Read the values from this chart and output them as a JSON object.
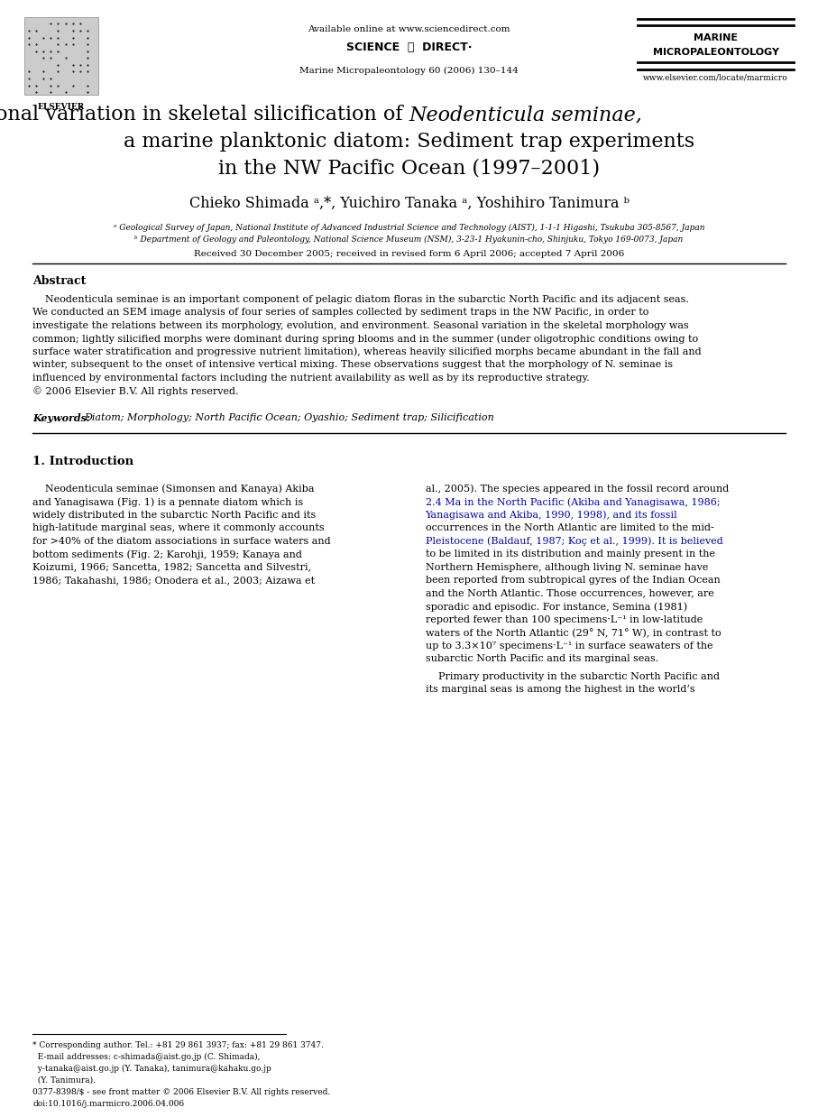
{
  "bg_color": "#ffffff",
  "page_width": 9.07,
  "page_height": 12.38,
  "header": {
    "elsevier_text": "ELSEVIER",
    "available_online": "Available online at www.sciencedirect.com",
    "journal_name_line1": "MARINE",
    "journal_name_line2": "MICROPALEONTOLOGY",
    "journal_ref": "Marine Micropaleontology 60 (2006) 130–144",
    "website": "www.elsevier.com/locate/marmicro"
  },
  "title_line1_normal": "Seasonal variation in skeletal silicification of ",
  "title_line1_italic": "Neodenticula seminae,",
  "title_line2": "a marine planktonic diatom: Sediment trap experiments",
  "title_line3": "in the NW Pacific Ocean (1997–2001)",
  "authors": "Chieko Shimada ᵃ,*, Yuichiro Tanaka ᵃ, Yoshihiro Tanimura ᵇ",
  "affil_a": "ᵃ Geological Survey of Japan, National Institute of Advanced Industrial Science and Technology (AIST), 1-1-1 Higashi, Tsukuba 305-8567, Japan",
  "affil_b": "ᵇ Department of Geology and Paleontology, National Science Museum (NSM), 3-23-1 Hyakunin-cho, Shinjuku, Tokyo 169-0073, Japan",
  "received": "Received 30 December 2005; received in revised form 6 April 2006; accepted 7 April 2006",
  "abstract_header": "Abstract",
  "abstract_lines": [
    "    Neodenticula seminae is an important component of pelagic diatom floras in the subarctic North Pacific and its adjacent seas.",
    "We conducted an SEM image analysis of four series of samples collected by sediment traps in the NW Pacific, in order to",
    "investigate the relations between its morphology, evolution, and environment. Seasonal variation in the skeletal morphology was",
    "common; lightly silicified morphs were dominant during spring blooms and in the summer (under oligotrophic conditions owing to",
    "surface water stratification and progressive nutrient limitation), whereas heavily silicified morphs became abundant in the fall and",
    "winter, subsequent to the onset of intensive vertical mixing. These observations suggest that the morphology of N. seminae is",
    "influenced by environmental factors including the nutrient availability as well as by its reproductive strategy.",
    "© 2006 Elsevier B.V. All rights reserved."
  ],
  "keywords_label": "Keywords: ",
  "keywords_text": "Diatom; Morphology; North Pacific Ocean; Oyashio; Sediment trap; Silicification",
  "section1_header": "1. Introduction",
  "left_col_lines": [
    "    Neodenticula seminae (Simonsen and Kanaya) Akiba",
    "and Yanagisawa (Fig. 1) is a pennate diatom which is",
    "widely distributed in the subarctic North Pacific and its",
    "high-latitude marginal seas, where it commonly accounts",
    "for >40% of the diatom associations in surface waters and",
    "bottom sediments (Fig. 2; Karohji, 1959; Kanaya and",
    "Koizumi, 1966; Sancetta, 1982; Sancetta and Silvestri,",
    "1986; Takahashi, 1986; Onodera et al., 2003; Aizawa et"
  ],
  "right_col_lines": [
    "al., 2005). The species appeared in the fossil record around",
    "2.4 Ma in the North Pacific (Akiba and Yanagisawa, 1986;",
    "Yanagisawa and Akiba, 1990, 1998), and its fossil",
    "occurrences in the North Atlantic are limited to the mid-",
    "Pleistocene (Baldauf, 1987; Koç et al., 1999). It is believed",
    "to be limited in its distribution and mainly present in the",
    "Northern Hemisphere, although living N. seminae have",
    "been reported from subtropical gyres of the Indian Ocean",
    "and the North Atlantic. Those occurrences, however, are",
    "sporadic and episodic. For instance, Semina (1981)",
    "reported fewer than 100 specimens·L⁻¹ in low-latitude",
    "waters of the North Atlantic (29° N, 71° W), in contrast to",
    "up to 3.3×10⁷ specimens·L⁻¹ in surface seawaters of the",
    "subarctic North Pacific and its marginal seas."
  ],
  "right_col_lines2": [
    "    Primary productivity in the subarctic North Pacific and",
    "its marginal seas is among the highest in the world’s"
  ],
  "footnote_lines": [
    "* Corresponding author. Tel.: +81 29 861 3937; fax: +81 29 861 3747.",
    "  E-mail addresses: c-shimada@aist.go.jp (C. Shimada),",
    "  y-tanaka@aist.go.jp (Y. Tanaka), tanimura@kahaku.go.jp",
    "  (Y. Tanimura)."
  ],
  "footer_lines": [
    "0377-8398/$ - see front matter © 2006 Elsevier B.V. All rights reserved.",
    "doi:10.1016/j.marmicro.2006.04.006"
  ]
}
